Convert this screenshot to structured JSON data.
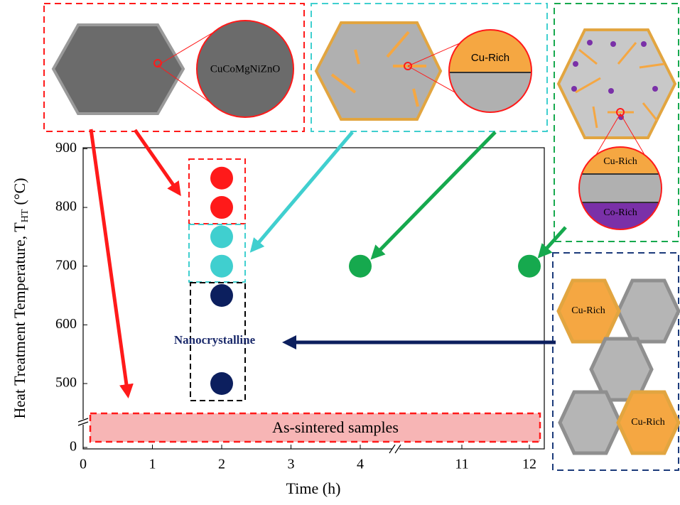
{
  "chart_data": {
    "type": "scatter",
    "xlabel": "Time (h)",
    "ylabel": "Heat Treatment Temperature, T",
    "ylabel_sub": "HT",
    "ylabel_unit": "(°C)",
    "x": [
      2,
      2,
      2,
      2,
      2,
      2,
      4,
      12
    ],
    "values": [
      850,
      800,
      750,
      700,
      650,
      500,
      700,
      700
    ],
    "colors": [
      "#ff1a1a",
      "#ff1a1a",
      "#40cfcf",
      "#40cfcf",
      "#0c1f5e",
      "#0c1f5e",
      "#16a94e",
      "#16a94e"
    ],
    "xticks": [
      0,
      1,
      2,
      3,
      4,
      11,
      12
    ],
    "yticks": [
      0,
      500,
      600,
      700,
      800,
      900
    ],
    "annotations": [
      "CuCoMgNiZnO",
      "Cu-Rich",
      "Cu-Rich",
      "Co-Rich",
      "Nanocrystalline",
      "As-sintered samples",
      "Cu-Rich",
      "Cu-Rich"
    ]
  }
}
